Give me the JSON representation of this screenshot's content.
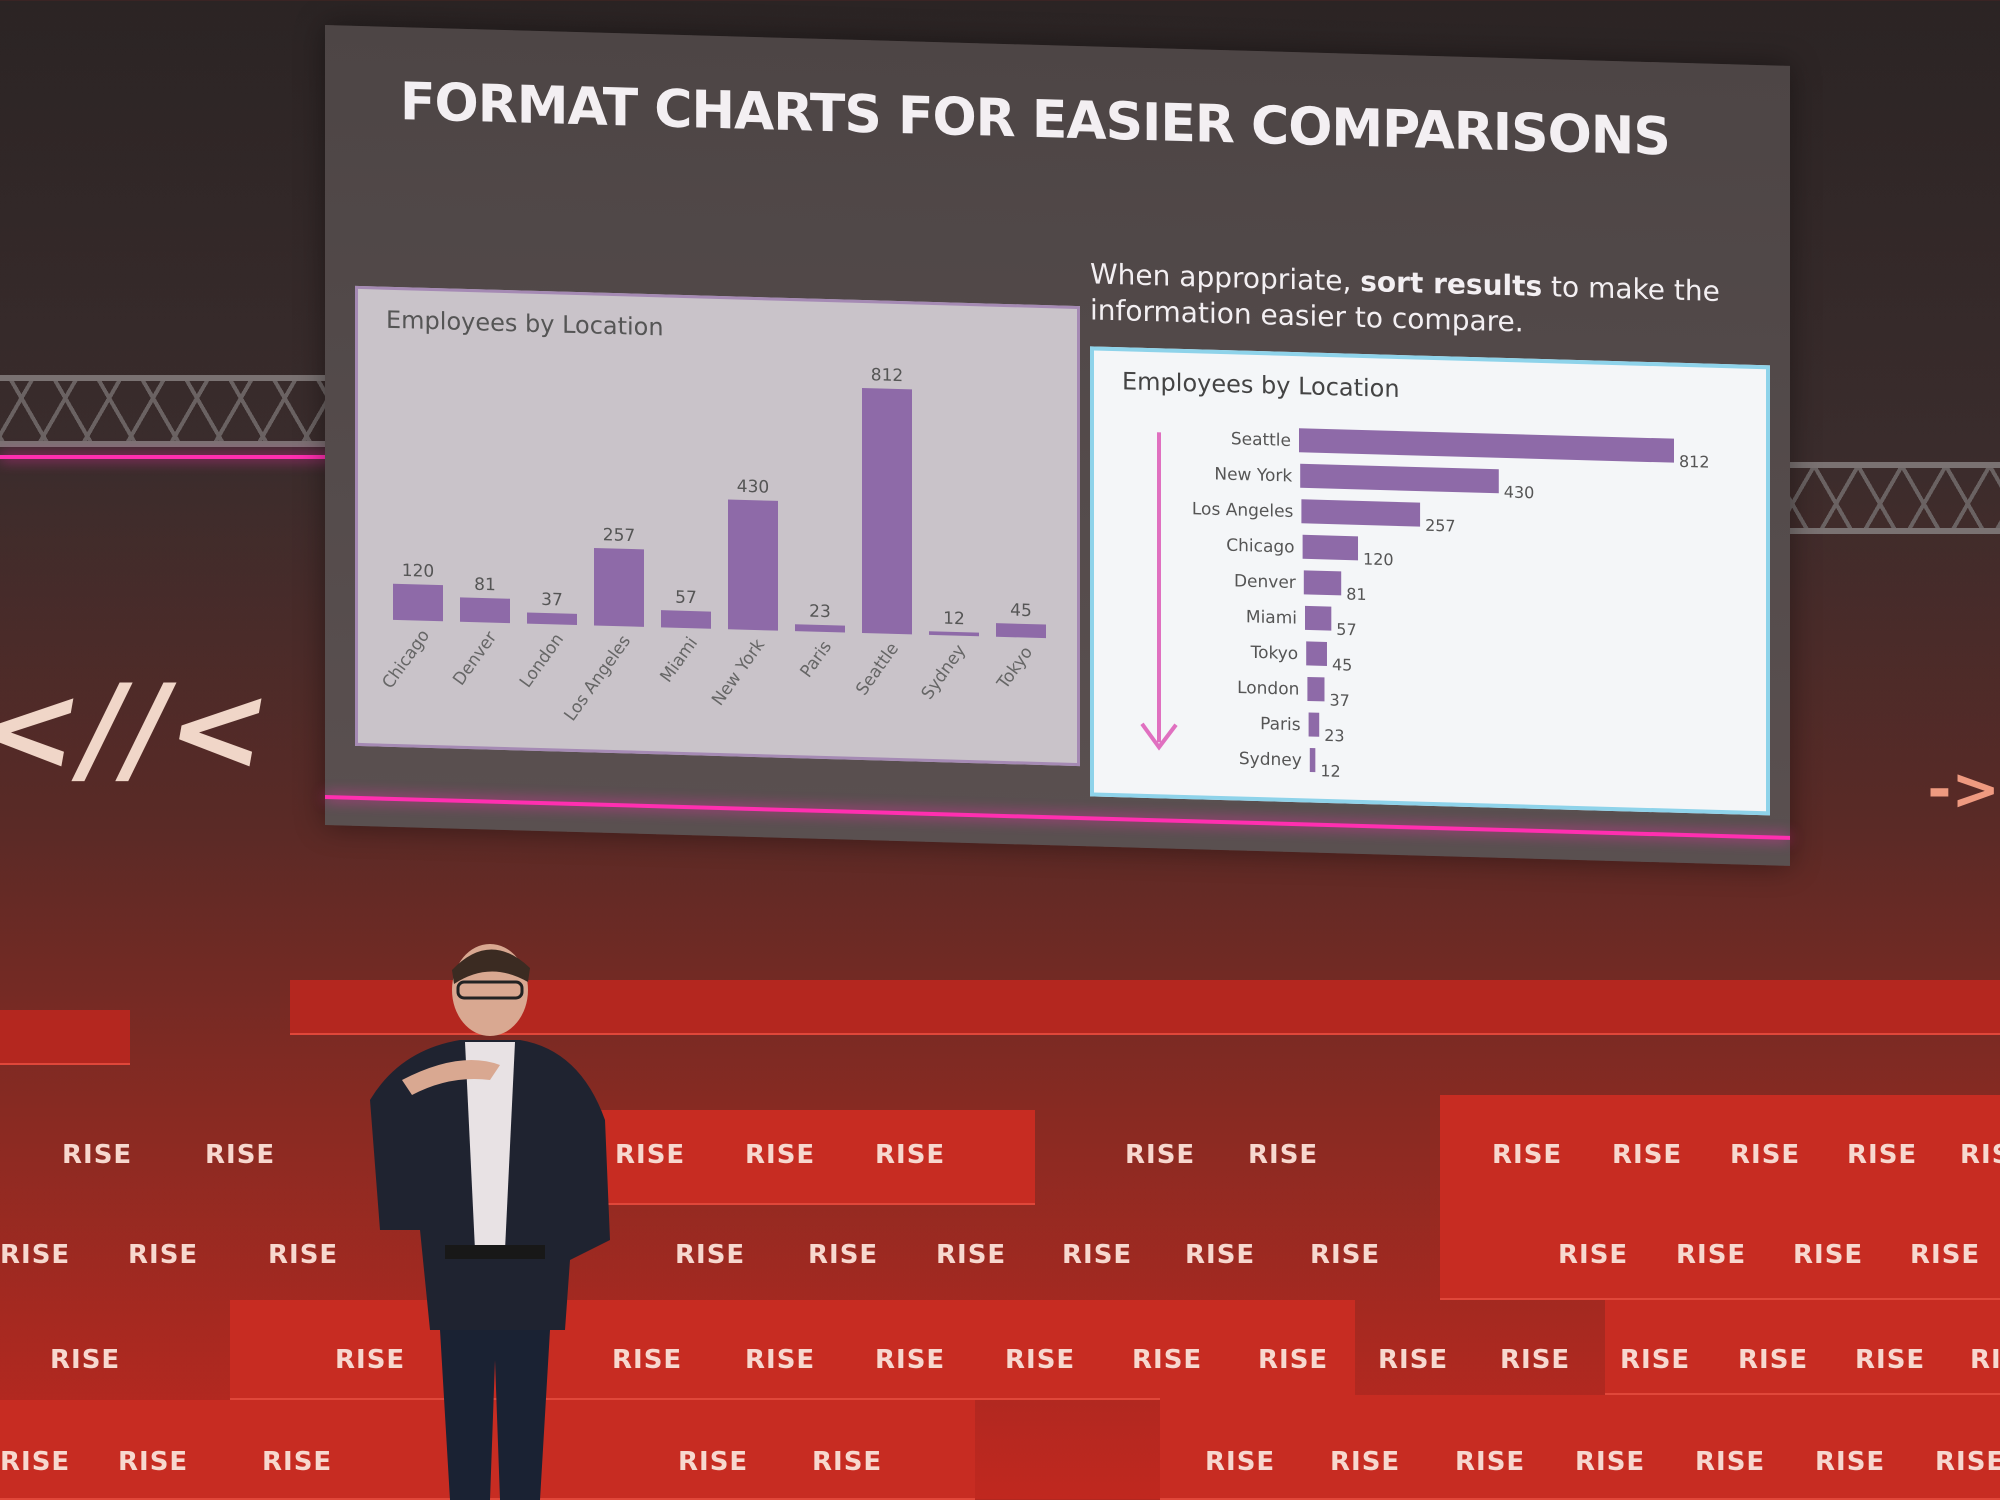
{
  "slide": {
    "title": "FORMAT CHARTS FOR EASIER COMPARISONS",
    "subtitle_part1": "When appropriate, ",
    "subtitle_bold": "sort results",
    "subtitle_part2": " to make the information easier to compare."
  },
  "chart_data": [
    {
      "type": "bar",
      "title": "Employees by Location",
      "categories": [
        "Chicago",
        "Denver",
        "London",
        "Los Angeles",
        "Miami",
        "New York",
        "Paris",
        "Seattle",
        "Sydney",
        "Tokyo"
      ],
      "values": [
        120,
        81,
        37,
        257,
        57,
        430,
        23,
        812,
        12,
        45
      ],
      "ylim": [
        0,
        812
      ],
      "grid": false,
      "bar_color": "#8e6aa8"
    },
    {
      "type": "bar",
      "orientation": "horizontal",
      "title": "Employees by Location",
      "categories": [
        "Seattle",
        "New York",
        "Los Angeles",
        "Chicago",
        "Denver",
        "Miami",
        "Tokyo",
        "London",
        "Paris",
        "Sydney"
      ],
      "values": [
        812,
        430,
        257,
        120,
        81,
        57,
        45,
        37,
        23,
        12
      ],
      "xlim": [
        0,
        812
      ],
      "grid": false,
      "bar_color": "#8e6aa8",
      "arrow_color": "#e070c0"
    }
  ],
  "stage": {
    "brand_text": "RISE",
    "logo_left": "<//<",
    "logo_right": "->"
  }
}
